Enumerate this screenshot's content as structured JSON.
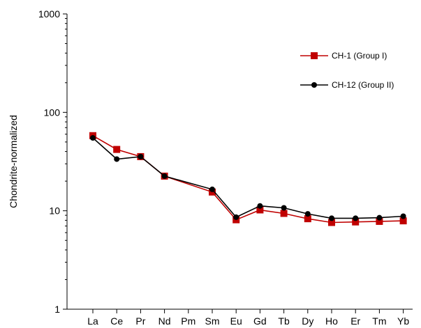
{
  "chart_data": {
    "type": "line",
    "categories": [
      "La",
      "Ce",
      "Pr",
      "Nd",
      "Pm",
      "Sm",
      "Eu",
      "Gd",
      "Tb",
      "Dy",
      "Ho",
      "Er",
      "Tm",
      "Yb"
    ],
    "ylabel": "Chondrite-normalized",
    "xlabel": "",
    "y_scale": "log",
    "ylim": [
      1,
      1000
    ],
    "y_ticks": [
      1,
      10,
      100,
      1000
    ],
    "y_tick_labels": [
      "1",
      "10",
      "100",
      "1000"
    ],
    "grid": false,
    "legend_position": "top-right",
    "series": [
      {
        "name": "CH-1 (Group I)",
        "color": "#c00000",
        "marker": "square",
        "values": [
          58,
          42,
          35.5,
          22.5,
          null,
          15.5,
          8.1,
          10.2,
          9.4,
          8.3,
          7.6,
          7.7,
          7.8,
          7.9
        ]
      },
      {
        "name": "CH-12 (Group II)",
        "color": "#000000",
        "marker": "circle",
        "values": [
          55,
          33.5,
          35.5,
          22.5,
          null,
          16.5,
          8.6,
          11.2,
          10.7,
          9.3,
          8.4,
          8.4,
          8.5,
          8.8
        ]
      }
    ]
  }
}
